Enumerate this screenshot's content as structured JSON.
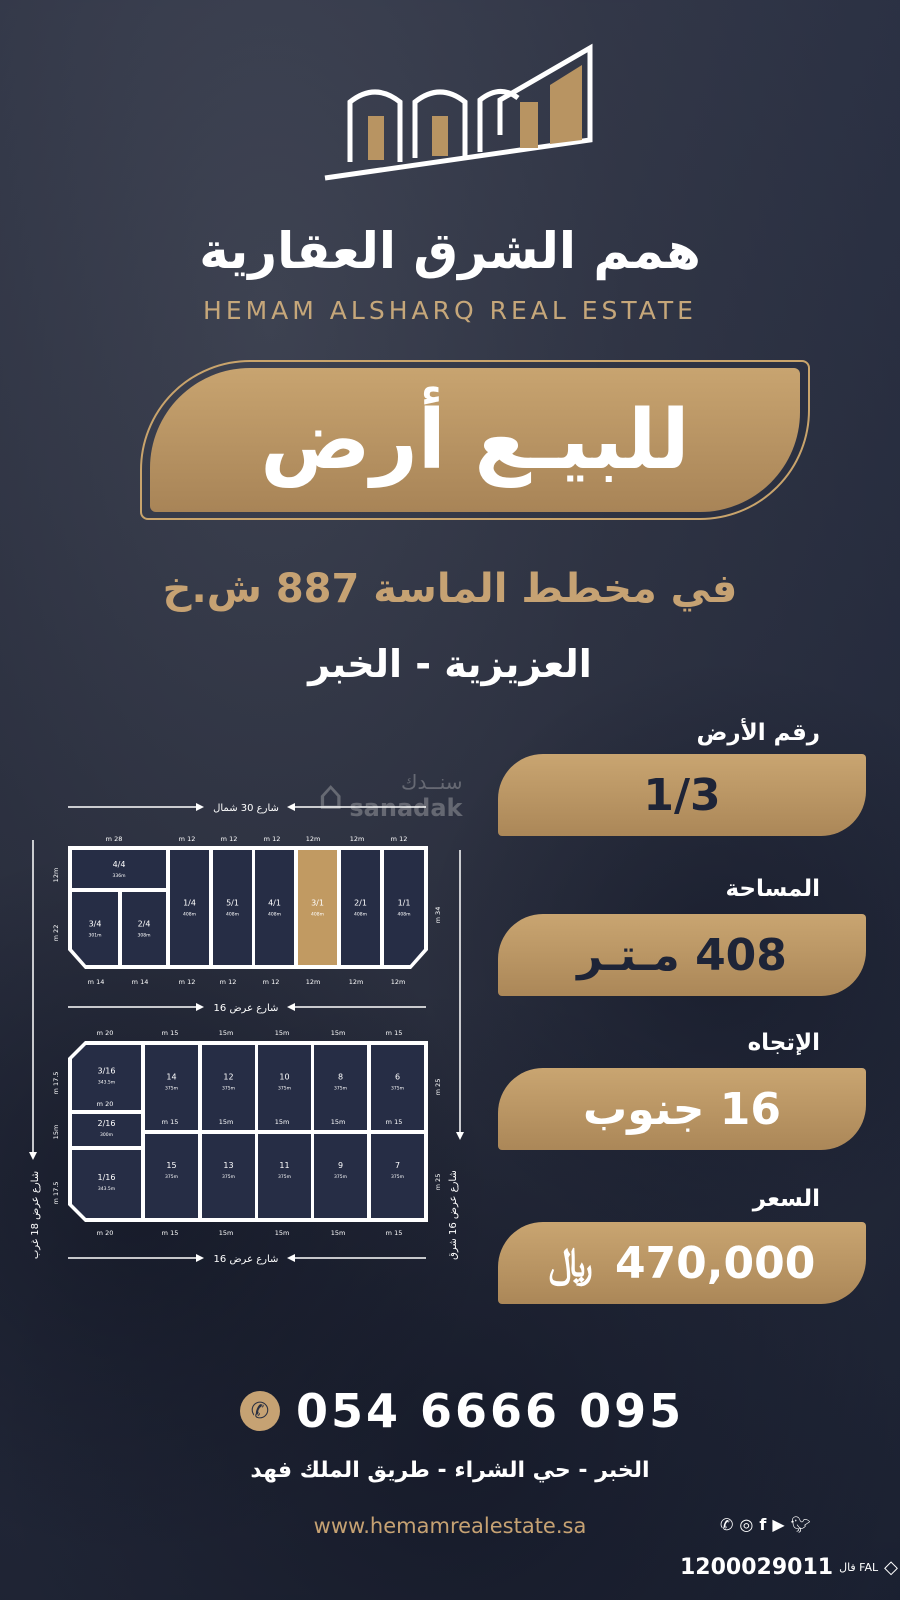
{
  "brand": {
    "name_ar": "همم الشرق العقارية",
    "name_en": "HEMAM ALSHARQ REAL ESTATE"
  },
  "banner": {
    "text": "للبيـع أرض"
  },
  "location": {
    "plan": "في مخطط الماسة 887 ش.خ",
    "district": "العزيزية - الخبر"
  },
  "details": [
    {
      "label": "رقم الأرض",
      "value": "1/3"
    },
    {
      "label": "المساحة",
      "value": "408 مـتـر"
    },
    {
      "label": "الإتجاه",
      "value": "16 جنوب"
    },
    {
      "label": "السعر",
      "value": "470,000",
      "currency_icon": "saudi-riyal-icon",
      "currency": "﷼"
    }
  ],
  "watermark": {
    "ar": "سنــدك",
    "en": "sanadak"
  },
  "map": {
    "streets": {
      "north": "شارع 30 شمال",
      "middle": "شارع عرض 16",
      "south": "شارع عرض 16",
      "west": "شارع عرض 18 غرب",
      "east": "شارع عرض 16 شرق"
    },
    "top_block": {
      "lots": [
        {
          "id": "4/4",
          "area": "336m"
        },
        {
          "id": "3/4",
          "area": "301m"
        },
        {
          "id": "2/4",
          "area": "308m"
        },
        {
          "id": "1/4",
          "area": "408m"
        },
        {
          "id": "5/1",
          "area": "408m"
        },
        {
          "id": "4/1",
          "area": "408m"
        },
        {
          "id": "3/1",
          "area": "408m",
          "highlighted": true
        },
        {
          "id": "2/1",
          "area": "408m"
        },
        {
          "id": "1/1",
          "area": "408m"
        }
      ],
      "dims_top": [
        "28 m",
        "12 m",
        "12 m",
        "12 m",
        "12m",
        "12m",
        "12 m"
      ],
      "dims_bottom": [
        "14 m",
        "14 m",
        "12 m",
        "12 m",
        "12 m",
        "12m",
        "12m",
        "12m"
      ],
      "dims_left": [
        "12m",
        "22 m"
      ],
      "dims_right": [
        "34 m"
      ]
    },
    "bottom_block": {
      "lots": [
        {
          "id": "3/16",
          "area": "343.5m"
        },
        {
          "id": "2/16",
          "area": "300m"
        },
        {
          "id": "1/16",
          "area": "343.5m"
        },
        {
          "id": "14",
          "area": "375m"
        },
        {
          "id": "12",
          "area": "375m"
        },
        {
          "id": "10",
          "area": "375m"
        },
        {
          "id": "8",
          "area": "375m"
        },
        {
          "id": "6",
          "area": "375m"
        },
        {
          "id": "15",
          "area": "375m"
        },
        {
          "id": "13",
          "area": "375m"
        },
        {
          "id": "11",
          "area": "375m"
        },
        {
          "id": "9",
          "area": "375m"
        },
        {
          "id": "7",
          "area": "375m"
        }
      ],
      "dims_top": [
        "20 m",
        "15 m",
        "15m",
        "15m",
        "15m",
        "15 m"
      ],
      "dims_mid": [
        "20 m",
        "15 m",
        "15m",
        "15m",
        "15m",
        "15 m"
      ],
      "dims_bottom": [
        "20 m",
        "15 m",
        "15m",
        "15m",
        "15m",
        "15 m"
      ],
      "dims_left": [
        "17.5 m",
        "15m",
        "17.5 m"
      ],
      "dims_right": [
        "25 m",
        "25 m"
      ]
    }
  },
  "contact": {
    "phone": "054 6666 095",
    "address": "الخبر - حي الشراء - طريق الملك فهد",
    "website": "www.hemamrealestate.sa",
    "social": [
      "whatsapp",
      "instagram",
      "facebook",
      "youtube",
      "twitter"
    ],
    "fal_logo": "فال FAL",
    "license": "1200029011"
  },
  "colors": {
    "gold": "#b89462",
    "background": "#2a3042",
    "highlight": "#c19a62"
  }
}
